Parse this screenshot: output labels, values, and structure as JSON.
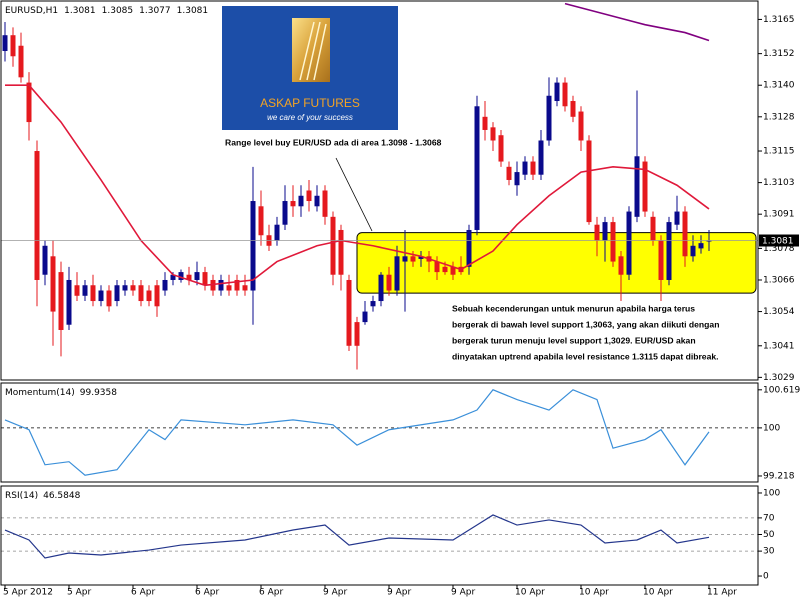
{
  "logo": {
    "title": "ASKAP FUTURES",
    "tagline": "we care of your success"
  },
  "chart_data": [
    {
      "type": "candlestick",
      "title": "EURUSD,H1",
      "up_color": "#0a0a8c",
      "down_color": "#e5191e",
      "xlim": [
        -0.5,
        94.125
      ],
      "xticks": [
        {
          "value": 0,
          "label": "5 Apr 2012"
        },
        {
          "value": 8,
          "label": "5 Apr"
        },
        {
          "value": 16,
          "label": "6 Apr"
        },
        {
          "value": 24,
          "label": "6 Apr"
        },
        {
          "value": 32,
          "label": "6 Apr"
        },
        {
          "value": 40,
          "label": "9 Apr"
        },
        {
          "value": 48,
          "label": "9 Apr"
        },
        {
          "value": 56,
          "label": "9 Apr"
        },
        {
          "value": 64,
          "label": "10 Apr"
        },
        {
          "value": 72,
          "label": "10 Apr"
        },
        {
          "value": 80,
          "label": "10 Apr"
        },
        {
          "value": 88,
          "label": "11 Apr"
        }
      ],
      "ylim": [
        1.3028,
        1.3172
      ],
      "yticks": [
        1.3165,
        1.3152,
        {
          "value": 1.314,
          "label": "1.3140"
        },
        1.3128,
        1.3115,
        1.3103,
        1.3091,
        1.3078,
        1.3066,
        1.3054,
        1.3041,
        1.3029
      ],
      "candles": [
        [
          1.3153,
          1.3164,
          1.3149,
          1.3159
        ],
        [
          1.3159,
          1.3162,
          1.3147,
          1.3151
        ],
        [
          1.3155,
          1.316,
          1.3141,
          1.3143
        ],
        [
          1.3141,
          1.3145,
          1.3119,
          1.3126
        ],
        [
          1.3115,
          1.3119,
          1.3056,
          1.3066
        ],
        [
          1.3068,
          1.3081,
          1.3064,
          1.3079
        ],
        [
          1.3075,
          1.3081,
          1.3041,
          1.3054
        ],
        [
          1.3069,
          1.3073,
          1.3037,
          1.3047
        ],
        [
          1.3049,
          1.3071,
          1.3047,
          1.3066
        ],
        [
          1.3064,
          1.3069,
          1.3058,
          1.306
        ],
        [
          1.306,
          1.3066,
          1.3058,
          1.3064
        ],
        [
          1.3064,
          1.3068,
          1.3056,
          1.3058
        ],
        [
          1.3058,
          1.3064,
          1.3056,
          1.3062
        ],
        [
          1.3062,
          1.3064,
          1.3054,
          1.3056
        ],
        [
          1.3058,
          1.3066,
          1.3056,
          1.3064
        ],
        [
          1.3062,
          1.3066,
          1.306,
          1.3064
        ],
        [
          1.3064,
          1.3066,
          1.306,
          1.3062
        ],
        [
          1.3064,
          1.3066,
          1.3056,
          1.3058
        ],
        [
          1.3062,
          1.3064,
          1.3056,
          1.3058
        ],
        [
          1.3064,
          1.3066,
          1.3052,
          1.3056
        ],
        [
          1.3062,
          1.3069,
          1.306,
          1.3066
        ],
        [
          1.3066,
          1.3069,
          1.3064,
          1.3068
        ],
        [
          1.3066,
          1.307,
          1.3065,
          1.3069
        ],
        [
          1.3068,
          1.3071,
          1.3064,
          1.3066
        ],
        [
          1.3066,
          1.3073,
          1.3064,
          1.3069
        ],
        [
          1.3069,
          1.3071,
          1.3062,
          1.3064
        ],
        [
          1.3066,
          1.3068,
          1.306,
          1.3062
        ],
        [
          1.3062,
          1.3068,
          1.306,
          1.3066
        ],
        [
          1.3064,
          1.3068,
          1.306,
          1.3062
        ],
        [
          1.3066,
          1.3068,
          1.306,
          1.3062
        ],
        [
          1.3064,
          1.3068,
          1.306,
          1.3062
        ],
        [
          1.3062,
          1.3109,
          1.3049,
          1.3096
        ],
        [
          1.3094,
          1.31,
          1.3079,
          1.3083
        ],
        [
          1.3083,
          1.3087,
          1.3077,
          1.3079
        ],
        [
          1.3081,
          1.309,
          1.3079,
          1.3087
        ],
        [
          1.3087,
          1.3102,
          1.3085,
          1.3096
        ],
        [
          1.3096,
          1.3102,
          1.309,
          1.3094
        ],
        [
          1.3094,
          1.3102,
          1.309,
          1.3098
        ],
        [
          1.31,
          1.3104,
          1.3092,
          1.3096
        ],
        [
          1.3094,
          1.3102,
          1.3092,
          1.3098
        ],
        [
          1.31,
          1.3102,
          1.3087,
          1.309
        ],
        [
          1.309,
          1.3092,
          1.3064,
          1.3068
        ],
        [
          1.3085,
          1.3087,
          1.3062,
          1.3068
        ],
        [
          1.3066,
          1.3068,
          1.3039,
          1.3041
        ],
        [
          1.305,
          1.3052,
          1.3032,
          1.3041
        ],
        [
          1.305,
          1.3058,
          1.3049,
          1.3054
        ],
        [
          1.3056,
          1.306,
          1.3054,
          1.3058
        ],
        [
          1.3058,
          1.3069,
          1.3056,
          1.3068
        ],
        [
          1.3068,
          1.3071,
          1.306,
          1.3062
        ],
        [
          1.3062,
          1.3079,
          1.306,
          1.3075
        ],
        [
          1.3073,
          1.3085,
          1.3054,
          1.3075
        ],
        [
          1.3075,
          1.3077,
          1.3071,
          1.3073
        ],
        [
          1.3074,
          1.3077,
          1.3071,
          1.3075
        ],
        [
          1.3075,
          1.3077,
          1.3069,
          1.3073
        ],
        [
          1.3073,
          1.3075,
          1.3066,
          1.3069
        ],
        [
          1.3071,
          1.3073,
          1.3068,
          1.3069
        ],
        [
          1.3071,
          1.3073,
          1.3066,
          1.3068
        ],
        [
          1.3071,
          1.3075,
          1.3068,
          1.3069
        ],
        [
          1.3071,
          1.3087,
          1.3068,
          1.3085
        ],
        [
          1.3085,
          1.3136,
          1.3083,
          1.3132
        ],
        [
          1.3128,
          1.3134,
          1.3119,
          1.3123
        ],
        [
          1.3124,
          1.3126,
          1.3115,
          1.3119
        ],
        [
          1.3121,
          1.3123,
          1.3109,
          1.3111
        ],
        [
          1.3109,
          1.3111,
          1.3102,
          1.3104
        ],
        [
          1.3102,
          1.3111,
          1.3098,
          1.3107
        ],
        [
          1.3106,
          1.3113,
          1.3104,
          1.3111
        ],
        [
          1.3111,
          1.3113,
          1.3104,
          1.3106
        ],
        [
          1.3106,
          1.3123,
          1.3104,
          1.3119
        ],
        [
          1.3119,
          1.3143,
          1.3117,
          1.3136
        ],
        [
          1.3134,
          1.3143,
          1.3132,
          1.3141
        ],
        [
          1.3141,
          1.3143,
          1.313,
          1.3132
        ],
        [
          1.3134,
          1.3136,
          1.3126,
          1.3128
        ],
        [
          1.313,
          1.3132,
          1.3115,
          1.3119
        ],
        [
          1.3119,
          1.3121,
          1.3087,
          1.3088
        ],
        [
          1.3087,
          1.309,
          1.3075,
          1.3081
        ],
        [
          1.3081,
          1.309,
          1.3073,
          1.3088
        ],
        [
          1.3088,
          1.309,
          1.3071,
          1.3073
        ],
        [
          1.3075,
          1.3077,
          1.3058,
          1.3068
        ],
        [
          1.3068,
          1.3094,
          1.3066,
          1.3092
        ],
        [
          1.309,
          1.3138,
          1.3088,
          1.3113
        ],
        [
          1.3111,
          1.3113,
          1.309,
          1.3092
        ],
        [
          1.309,
          1.3092,
          1.3079,
          1.3081
        ],
        [
          1.3081,
          1.3083,
          1.3058,
          1.3066
        ],
        [
          1.3066,
          1.309,
          1.3064,
          1.3088
        ],
        [
          1.3087,
          1.3098,
          1.3085,
          1.3092
        ],
        [
          1.3092,
          1.3094,
          1.3071,
          1.3075
        ],
        [
          1.3075,
          1.3083,
          1.3073,
          1.3079
        ],
        [
          1.3078,
          1.3083,
          1.3076,
          1.308
        ],
        [
          1.3081,
          1.3085,
          1.3077,
          1.3081
        ]
      ],
      "overlays": [
        {
          "color": "#e0193a",
          "x": [
            0,
            3,
            7,
            12,
            17,
            21,
            25,
            31,
            34,
            39,
            42,
            46,
            52,
            57,
            61,
            64,
            68,
            72,
            76,
            80,
            84,
            88
          ],
          "values": [
            1.314,
            1.314,
            1.3126,
            1.3104,
            1.3081,
            1.3068,
            1.3064,
            1.3066,
            1.3073,
            1.3079,
            1.3081,
            1.3079,
            1.3075,
            1.307,
            1.3077,
            1.3087,
            1.3098,
            1.3107,
            1.3109,
            1.3108,
            1.3102,
            1.3093
          ]
        },
        {
          "color": "#800080",
          "x": [
            70,
            75,
            80,
            85,
            88
          ],
          "values": [
            1.3171,
            1.3167,
            1.3163,
            1.316,
            1.3157
          ]
        }
      ],
      "zone": {
        "x": 44,
        "values": [
          1.3084,
          1.3061
        ],
        "color": "#ffff00"
      },
      "range_note": "Range level buy EUR/USD ada di area 1.3098 - 1.3068",
      "note": [
        "Sebuah kecenderungan untuk menurun apabila harga terus",
        "bergerak di bawah level support 1,3063, yang akan diikuti dengan",
        "bergerak turun menuju level support 1,3029. EUR/USD akan",
        "dinyatakan uptrend apabila level resistance 1.3115 dapat dibreak."
      ]
    },
    {
      "type": "line",
      "title": "Momentum(14)",
      "color": "#3a8fd9",
      "ylim": [
        99.12,
        100.73
      ],
      "yticks": [
        100.6192,
        100,
        99.218
      ],
      "levels": [
        100
      ],
      "x": [
        0,
        3,
        5,
        8,
        10,
        14,
        18,
        20,
        22,
        30,
        36,
        41,
        44,
        48,
        56,
        59,
        61,
        64,
        68,
        71,
        74,
        76,
        80,
        82,
        85,
        88
      ],
      "values": [
        100.13,
        99.97,
        99.4,
        99.45,
        99.23,
        99.32,
        99.97,
        99.81,
        100.13,
        100.05,
        100.13,
        100.05,
        99.72,
        99.97,
        100.13,
        100.29,
        100.62,
        100.46,
        100.29,
        100.62,
        100.46,
        99.67,
        99.81,
        99.97,
        99.4,
        99.9358
      ]
    },
    {
      "type": "line",
      "title": "RSI(14)",
      "color": "#24368c",
      "ylim": [
        -10.8,
        108.4
      ],
      "yticks": [
        100,
        70,
        50,
        30,
        0
      ],
      "levels": [
        70,
        50,
        30
      ],
      "x": [
        0,
        3,
        5,
        8,
        12,
        18,
        22,
        30,
        36,
        40,
        43,
        48,
        56,
        59,
        61,
        64,
        68,
        72,
        75,
        79,
        82,
        84,
        88
      ],
      "values": [
        55.4,
        43.4,
        21.7,
        27.7,
        25.3,
        31.3,
        37.3,
        43.4,
        55.4,
        61.4,
        37.3,
        45.8,
        43.4,
        61.4,
        73.5,
        61.4,
        67.5,
        61.4,
        39.8,
        43.4,
        55.4,
        39.8,
        46.5848
      ]
    }
  ]
}
